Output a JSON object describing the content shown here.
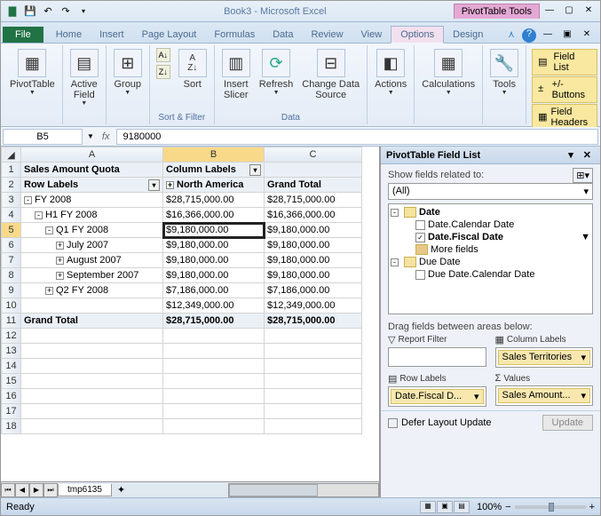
{
  "titlebar": {
    "doc_title": "Book3 - Microsoft Excel",
    "context_tab": "PivotTable Tools"
  },
  "tabs": {
    "file": "File",
    "home": "Home",
    "insert": "Insert",
    "page_layout": "Page Layout",
    "formulas": "Formulas",
    "data": "Data",
    "review": "Review",
    "view": "View",
    "options": "Options",
    "design": "Design"
  },
  "ribbon": {
    "pivottable": "PivotTable",
    "active_field": "Active\nField",
    "group": "Group",
    "sort_asc": "A→Z",
    "sort_desc": "Z→A",
    "sort": "Sort",
    "insert_slicer": "Insert\nSlicer",
    "refresh": "Refresh",
    "change_data": "Change Data\nSource",
    "actions": "Actions",
    "calculations": "Calculations",
    "tools": "Tools",
    "field_list": "Field List",
    "buttons": "+/- Buttons",
    "field_headers": "Field Headers",
    "grp_sort": "Sort & Filter",
    "grp_data": "Data",
    "grp_show": "Show"
  },
  "formula": {
    "cell_ref": "B5",
    "value": "9180000"
  },
  "grid": {
    "col_headers": [
      "A",
      "B",
      "C"
    ],
    "rows": [
      {
        "n": 1,
        "a": "Sales Amount Quota",
        "b": "Column Labels",
        "c": "",
        "cls": "pt-header",
        "filter_b": true
      },
      {
        "n": 2,
        "a": "Row Labels",
        "b": "North America",
        "c": "Grand Total",
        "cls": "pt-header",
        "filter_a": true,
        "expand_b": true
      },
      {
        "n": 3,
        "a": "FY 2008",
        "b": "$28,715,000.00",
        "c": "$28,715,000.00",
        "expand": "-",
        "indent": 0
      },
      {
        "n": 4,
        "a": "H1 FY 2008",
        "b": "$16,366,000.00",
        "c": "$16,366,000.00",
        "expand": "-",
        "indent": 1
      },
      {
        "n": 5,
        "a": "Q1 FY 2008",
        "b": "$9,180,000.00",
        "c": "$9,180,000.00",
        "expand": "-",
        "indent": 2,
        "selected": true
      },
      {
        "n": 6,
        "a": "July 2007",
        "b": "$9,180,000.00",
        "c": "$9,180,000.00",
        "expand": "+",
        "indent": 3
      },
      {
        "n": 7,
        "a": "August 2007",
        "b": "$9,180,000.00",
        "c": "$9,180,000.00",
        "expand": "+",
        "indent": 3
      },
      {
        "n": 8,
        "a": "September 2007",
        "b": "$9,180,000.00",
        "c": "$9,180,000.00",
        "expand": "+",
        "indent": 3
      },
      {
        "n": 9,
        "a": "Q2 FY 2008",
        "b": "$7,186,000.00",
        "c": "$7,186,000.00",
        "expand": "+",
        "indent": 2
      },
      {
        "n": 10,
        "a": "",
        "b": "$12,349,000.00",
        "c": "$12,349,000.00"
      },
      {
        "n": 11,
        "a": "Grand Total",
        "b": "$28,715,000.00",
        "c": "$28,715,000.00",
        "cls": "pt-total"
      },
      {
        "n": 12,
        "a": "",
        "b": "",
        "c": ""
      },
      {
        "n": 13,
        "a": "",
        "b": "",
        "c": ""
      },
      {
        "n": 14,
        "a": "",
        "b": "",
        "c": ""
      },
      {
        "n": 15,
        "a": "",
        "b": "",
        "c": ""
      },
      {
        "n": 16,
        "a": "",
        "b": "",
        "c": ""
      },
      {
        "n": 17,
        "a": "",
        "b": "",
        "c": ""
      },
      {
        "n": 18,
        "a": "",
        "b": "",
        "c": ""
      }
    ],
    "sheet_tab": "tmp6135"
  },
  "fieldlist": {
    "title": "PivotTable Field List",
    "show_fields_label": "Show fields related to:",
    "show_fields_value": "(All)",
    "tree": [
      {
        "level": 0,
        "expand": "-",
        "dim": true,
        "label": "Date",
        "bold": true
      },
      {
        "level": 1,
        "check": false,
        "label": "Date.Calendar Date"
      },
      {
        "level": 1,
        "check": true,
        "label": "Date.Fiscal Date",
        "bold": true,
        "funnel": true
      },
      {
        "level": 1,
        "more": true,
        "label": "More fields"
      },
      {
        "level": 0,
        "expand": "-",
        "dim": true,
        "label": "Due Date"
      },
      {
        "level": 1,
        "check": false,
        "label": "Due Date.Calendar Date"
      }
    ],
    "drag_label": "Drag fields between areas below:",
    "areas": {
      "report_filter": {
        "label": "Report Filter",
        "chips": []
      },
      "column_labels": {
        "label": "Column Labels",
        "chips": [
          "Sales Territories"
        ]
      },
      "row_labels": {
        "label": "Row Labels",
        "chips": [
          "Date.Fiscal D..."
        ]
      },
      "values": {
        "label": "Values",
        "chips": [
          "Sales Amount..."
        ]
      }
    },
    "defer_label": "Defer Layout Update",
    "update_btn": "Update"
  },
  "statusbar": {
    "ready": "Ready",
    "zoom": "100%"
  }
}
